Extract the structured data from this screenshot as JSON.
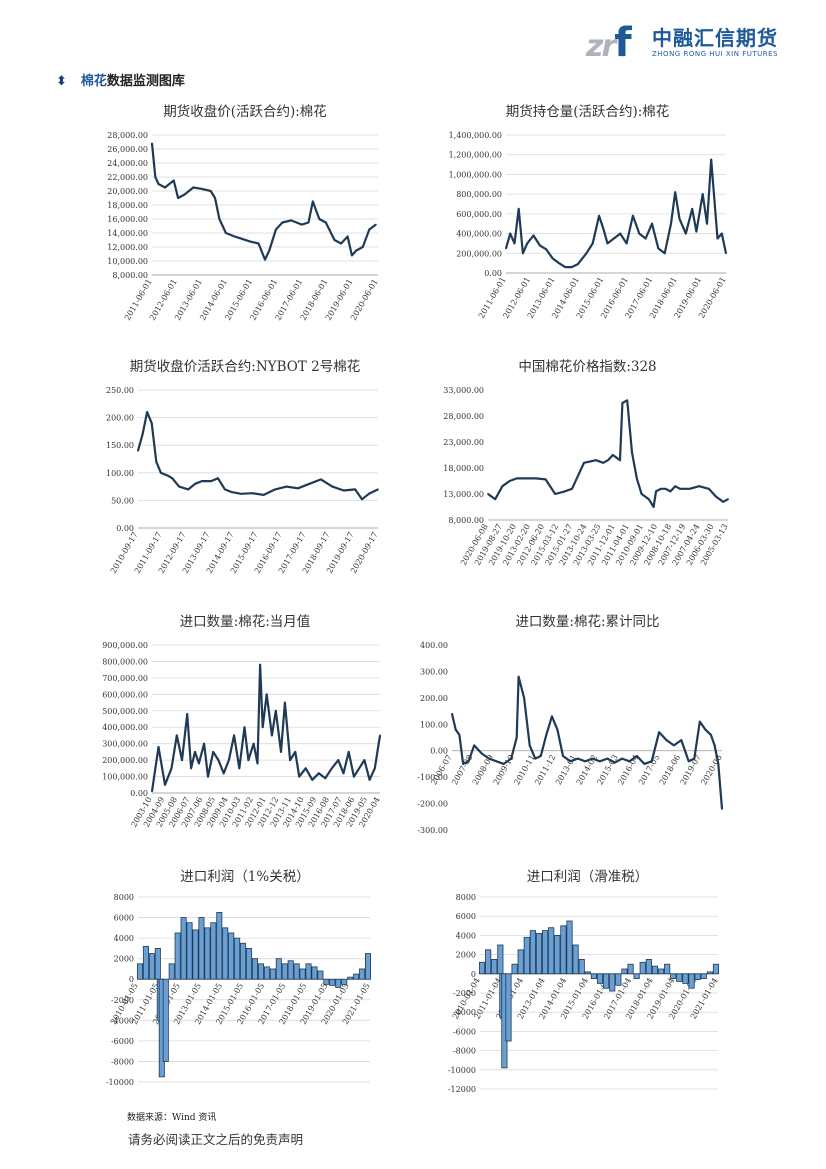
{
  "logo": {
    "mark": "zr",
    "mark_f": "f",
    "cn": "中融汇信期货",
    "en": "ZHONG RONG HUI XIN FUTURES"
  },
  "section": {
    "highlight": "棉花",
    "rest": "数据监测图库"
  },
  "footer": {
    "source": "数据来源：Wind 资讯",
    "disclaimer": "请务必阅读正文之后的免责声明"
  },
  "colors": {
    "line": "#1f3a56",
    "bar_light": "#6a9fd3",
    "bar_dark": "#1f3a56",
    "grid": "#d9d9d9"
  },
  "chart_data": [
    {
      "type": "line",
      "title": "期货收盘价(活跃合约):棉花",
      "yticks": [
        "28,000.00",
        "26,000.00",
        "24,000.00",
        "22,000.00",
        "20,000.00",
        "18,000.00",
        "16,000.00",
        "14,000.00",
        "12,000.00",
        "10,000.00",
        "8,000.00"
      ],
      "ylim": [
        8000,
        28000
      ],
      "xticks": [
        "2011-06-01",
        "2012-06-01",
        "2013-06-01",
        "2014-06-01",
        "2015-06-01",
        "2016-06-01",
        "2017-06-01",
        "2018-06-01",
        "2019-06-01",
        "2020-06-01"
      ],
      "xrange": [
        2010.9,
        2021.3
      ],
      "x": [
        2010.9,
        2011.05,
        2011.2,
        2011.5,
        2011.9,
        2012.1,
        2012.4,
        2012.8,
        2013.2,
        2013.6,
        2013.8,
        2014.0,
        2014.3,
        2014.7,
        2015.0,
        2015.4,
        2015.8,
        2016.1,
        2016.3,
        2016.6,
        2016.9,
        2017.3,
        2017.8,
        2018.1,
        2018.3,
        2018.6,
        2018.9,
        2019.3,
        2019.6,
        2019.9,
        2020.1,
        2020.3,
        2020.6,
        2020.9,
        2021.2
      ],
      "y": [
        26800,
        22000,
        21000,
        20500,
        21500,
        19000,
        19500,
        20500,
        20300,
        20000,
        19000,
        16000,
        14000,
        13500,
        13200,
        12800,
        12500,
        10200,
        11500,
        14500,
        15500,
        15800,
        15200,
        15500,
        18500,
        16000,
        15500,
        13000,
        12500,
        13500,
        10800,
        11500,
        12000,
        14500,
        15200
      ]
    },
    {
      "type": "line",
      "title": "期货持仓量(活跃合约):棉花",
      "yticks": [
        "1,400,000.00",
        "1,200,000.00",
        "1,000,000.00",
        "800,000.00",
        "600,000.00",
        "400,000.00",
        "200,000.00",
        "0.00"
      ],
      "ylim": [
        0,
        1400000
      ],
      "xticks": [
        "2011-06-01",
        "2012-06-01",
        "2013-06-01",
        "2014-06-01",
        "2015-06-01",
        "2016-06-01",
        "2017-06-01",
        "2018-06-01",
        "2019-06-01",
        "2020-06-01"
      ],
      "xrange": [
        2010.9,
        2021.3
      ],
      "x": [
        2010.9,
        2011.1,
        2011.3,
        2011.5,
        2011.7,
        2011.9,
        2012.2,
        2012.5,
        2012.8,
        2013.1,
        2013.4,
        2013.7,
        2014.0,
        2014.3,
        2014.7,
        2015.0,
        2015.3,
        2015.5,
        2015.7,
        2016.0,
        2016.3,
        2016.6,
        2016.9,
        2017.2,
        2017.5,
        2017.8,
        2018.1,
        2018.4,
        2018.7,
        2018.9,
        2019.1,
        2019.4,
        2019.7,
        2019.9,
        2020.2,
        2020.4,
        2020.6,
        2020.9,
        2021.1,
        2021.3
      ],
      "y": [
        250000,
        400000,
        300000,
        650000,
        200000,
        300000,
        380000,
        280000,
        240000,
        150000,
        100000,
        60000,
        60000,
        90000,
        200000,
        300000,
        580000,
        450000,
        300000,
        350000,
        400000,
        300000,
        580000,
        400000,
        350000,
        500000,
        250000,
        200000,
        500000,
        820000,
        550000,
        400000,
        650000,
        420000,
        800000,
        500000,
        1150000,
        350000,
        400000,
        200000
      ]
    },
    {
      "type": "line",
      "title": "期货收盘价活跃合约:NYBOT 2号棉花",
      "yticks": [
        "250.00",
        "200.00",
        "150.00",
        "100.00",
        "50.00",
        "0.00"
      ],
      "ylim": [
        0,
        250
      ],
      "xticks": [
        "2010-09-17",
        "2011-09-17",
        "2012-09-17",
        "2013-09-17",
        "2014-09-17",
        "2015-09-17",
        "2016-09-17",
        "2017-09-17",
        "2018-09-17",
        "2019-09-17",
        "2020-09-17"
      ],
      "xrange": [
        2010.5,
        2021.0
      ],
      "x": [
        2010.5,
        2010.7,
        2010.9,
        2011.1,
        2011.3,
        2011.5,
        2011.8,
        2012.0,
        2012.3,
        2012.7,
        2013.0,
        2013.3,
        2013.7,
        2014.0,
        2014.3,
        2014.6,
        2015.0,
        2015.5,
        2016.0,
        2016.5,
        2017.0,
        2017.5,
        2018.0,
        2018.5,
        2019.0,
        2019.5,
        2020.0,
        2020.3,
        2020.6,
        2021.0
      ],
      "y": [
        140,
        170,
        210,
        190,
        120,
        100,
        95,
        90,
        75,
        70,
        80,
        85,
        85,
        90,
        70,
        65,
        62,
        63,
        60,
        70,
        75,
        72,
        80,
        88,
        75,
        68,
        70,
        52,
        62,
        70
      ]
    },
    {
      "type": "line",
      "title": "中国棉花价格指数:328",
      "yticks": [
        "33,000.00",
        "28,000.00",
        "23,000.00",
        "18,000.00",
        "13,000.00",
        "8,000.00"
      ],
      "ylim": [
        8000,
        33000
      ],
      "xticks": [
        "2020-06-08",
        "2019-08-27",
        "2019-10-20",
        "2013-02-20",
        "2012-06-20",
        "2015-03-12",
        "2015-01-27",
        "2013-10-24",
        "2013-03-25",
        "2011-12-01",
        "2011-04-01",
        "2010-09-01",
        "2009-12-10",
        "2008-10-18",
        "2007-12-19",
        "2007-04-24",
        "2006-03-30",
        "2005-03-13"
      ],
      "xrange": [
        0,
        100
      ],
      "x": [
        0,
        3,
        6,
        9,
        12,
        16,
        20,
        24,
        28,
        32,
        35,
        40,
        45,
        48,
        50,
        52,
        55,
        56,
        58,
        60,
        62,
        64,
        67,
        69,
        70,
        72,
        74,
        76,
        78,
        80,
        84,
        88,
        92,
        95,
        98,
        100
      ],
      "y": [
        13000,
        12000,
        14500,
        15500,
        16000,
        16000,
        16000,
        15800,
        13000,
        13500,
        14000,
        19000,
        19500,
        19000,
        19500,
        20500,
        19500,
        30500,
        31000,
        21000,
        16000,
        13000,
        12000,
        10500,
        13500,
        14000,
        14000,
        13500,
        14500,
        14000,
        14000,
        14500,
        14000,
        12500,
        11500,
        12000
      ]
    },
    {
      "type": "line",
      "title": "进口数量:棉花:当月值",
      "yticks": [
        "900,000.00",
        "800,000.00",
        "700,000.00",
        "600,000.00",
        "500,000.00",
        "400,000.00",
        "300,000.00",
        "200,000.00",
        "100,000.00",
        "0.00"
      ],
      "ylim": [
        0,
        900000
      ],
      "xticks": [
        "2003-10",
        "2004-09",
        "2005-08",
        "2006-07",
        "2007-06",
        "2008-05",
        "2009-04",
        "2010-03",
        "2011-02",
        "2012-01",
        "2012-12",
        "2013-11",
        "2014-10",
        "2015-09",
        "2016-08",
        "2017-07",
        "2018-06",
        "2019-05",
        "2020-04"
      ],
      "xrange": [
        2003.7,
        2021.2
      ],
      "x": [
        2003.7,
        2004.2,
        2004.7,
        2005.2,
        2005.6,
        2006.0,
        2006.4,
        2006.7,
        2007.0,
        2007.3,
        2007.7,
        2008.0,
        2008.4,
        2008.8,
        2009.2,
        2009.6,
        2010.0,
        2010.4,
        2010.8,
        2011.1,
        2011.5,
        2011.8,
        2012.0,
        2012.2,
        2012.5,
        2012.9,
        2013.2,
        2013.6,
        2013.9,
        2014.3,
        2014.7,
        2015.0,
        2015.5,
        2016.0,
        2016.5,
        2017.0,
        2017.5,
        2018.0,
        2018.4,
        2018.8,
        2019.2,
        2019.6,
        2020.0,
        2020.4,
        2020.8,
        2021.2
      ],
      "y": [
        10000,
        280000,
        50000,
        150000,
        350000,
        200000,
        480000,
        150000,
        250000,
        180000,
        300000,
        100000,
        250000,
        200000,
        120000,
        200000,
        350000,
        150000,
        400000,
        200000,
        300000,
        180000,
        780000,
        400000,
        600000,
        350000,
        500000,
        250000,
        550000,
        200000,
        250000,
        100000,
        150000,
        80000,
        120000,
        90000,
        150000,
        200000,
        120000,
        250000,
        100000,
        150000,
        200000,
        80000,
        150000,
        350000
      ]
    },
    {
      "type": "line",
      "title": "进口数量:棉花:累计同比",
      "yticks": [
        "400.00",
        "300.00",
        "200.00",
        "100.00",
        "0.00",
        "-100.00",
        "-200.00",
        "-300.00"
      ],
      "ylim": [
        -300,
        400
      ],
      "xticks": [
        "2006-07",
        "2007-08",
        "2008-09",
        "2009-10",
        "2010-11",
        "2011-12",
        "2013-01",
        "2014-02",
        "2015-03",
        "2016-04",
        "2017-05",
        "2018-06",
        "2019-07",
        "2020-08"
      ],
      "xrange": [
        2006.4,
        2021.0
      ],
      "x": [
        2006.4,
        2006.6,
        2006.8,
        2007.0,
        2007.3,
        2007.6,
        2008.0,
        2008.4,
        2008.8,
        2009.2,
        2009.6,
        2009.9,
        2010.0,
        2010.3,
        2010.6,
        2010.9,
        2011.2,
        2011.5,
        2011.8,
        2012.1,
        2012.4,
        2012.8,
        2013.2,
        2013.6,
        2014.0,
        2014.4,
        2014.8,
        2015.2,
        2015.6,
        2016.0,
        2016.4,
        2016.8,
        2017.2,
        2017.6,
        2018.0,
        2018.4,
        2018.8,
        2019.2,
        2019.5,
        2019.8,
        2020.1,
        2020.4,
        2020.6,
        2020.8,
        2021.0
      ],
      "y": [
        140,
        80,
        60,
        -50,
        -40,
        20,
        -10,
        -30,
        -40,
        -50,
        -30,
        50,
        280,
        200,
        20,
        -30,
        -20,
        60,
        130,
        80,
        -20,
        -40,
        -30,
        -40,
        -30,
        -40,
        -30,
        -45,
        -30,
        -40,
        -20,
        -50,
        -40,
        70,
        40,
        20,
        40,
        -40,
        -30,
        110,
        80,
        60,
        20,
        -50,
        -220
      ]
    },
    {
      "type": "bar",
      "title": "进口利润（1%关税）",
      "yticks": [
        "8000",
        "6000",
        "4000",
        "2000",
        "0",
        "-2000",
        "-4000",
        "-6000",
        "-8000",
        "-10000"
      ],
      "ylim": [
        -10000,
        8000
      ],
      "xticks": [
        "2010-01-05",
        "2011-01-05",
        "2012-01-05",
        "2013-01-05",
        "2014-01-05",
        "2015-01-05",
        "2016-01-05",
        "2017-01-05",
        "2018-01-05",
        "2019-01-05",
        "2020-01-05",
        "2021-01-05"
      ],
      "xrange": [
        2009.9,
        2021.6
      ],
      "x": [
        2010.0,
        2010.3,
        2010.6,
        2010.9,
        2011.0,
        2011.1,
        2011.3,
        2011.6,
        2011.9,
        2012.2,
        2012.5,
        2012.8,
        2013.1,
        2013.4,
        2013.7,
        2014.0,
        2014.3,
        2014.6,
        2014.9,
        2015.2,
        2015.5,
        2015.8,
        2016.1,
        2016.4,
        2016.7,
        2017.0,
        2017.3,
        2017.6,
        2017.9,
        2018.2,
        2018.5,
        2018.8,
        2019.1,
        2019.4,
        2019.7,
        2020.0,
        2020.3,
        2020.6,
        2020.9,
        2021.2,
        2021.5
      ],
      "y": [
        1500,
        3200,
        2500,
        3000,
        -4000,
        -9500,
        -8000,
        1500,
        4500,
        6000,
        5500,
        4800,
        6000,
        5000,
        5500,
        6500,
        5000,
        4500,
        4000,
        3500,
        3000,
        2000,
        1500,
        1200,
        1000,
        2000,
        1500,
        1800,
        1500,
        1000,
        1500,
        1200,
        800,
        -500,
        -600,
        -800,
        -500,
        200,
        500,
        1000,
        2500
      ]
    },
    {
      "type": "bar",
      "title": "进口利润（滑准税）",
      "yticks": [
        "8000",
        "6000",
        "4000",
        "2000",
        "0",
        "-2000",
        "-4000",
        "-6000",
        "-8000",
        "-10000",
        "-12000"
      ],
      "ylim": [
        -12000,
        8000
      ],
      "xticks": [
        "2010-01-04",
        "2011-01-04",
        "2012-01-04",
        "2013-01-04",
        "2014-01-04",
        "2015-01-04",
        "2016-01-04",
        "2017-01-04",
        "2018-01-04",
        "2019-01-04",
        "2020-01-04",
        "2021-01-04"
      ],
      "xrange": [
        2009.9,
        2021.6
      ],
      "x": [
        2010.0,
        2010.3,
        2010.6,
        2010.9,
        2011.0,
        2011.1,
        2011.3,
        2011.6,
        2011.9,
        2012.2,
        2012.5,
        2012.8,
        2013.1,
        2013.4,
        2013.7,
        2014.0,
        2014.3,
        2014.6,
        2014.9,
        2015.2,
        2015.5,
        2015.8,
        2016.1,
        2016.4,
        2016.7,
        2017.0,
        2017.3,
        2017.6,
        2017.9,
        2018.2,
        2018.5,
        2018.8,
        2019.1,
        2019.4,
        2019.7,
        2020.0,
        2020.3,
        2020.6,
        2020.9,
        2021.2,
        2021.5
      ],
      "y": [
        1200,
        2500,
        1500,
        3000,
        -4500,
        -9800,
        -7000,
        1000,
        2500,
        3800,
        4500,
        4200,
        4500,
        4800,
        4000,
        5000,
        5500,
        3000,
        1500,
        200,
        -500,
        -1000,
        -1500,
        -1800,
        -1200,
        500,
        1000,
        -500,
        1200,
        1500,
        800,
        500,
        1000,
        -500,
        -800,
        -1000,
        -1500,
        -600,
        -500,
        200,
        1000
      ]
    }
  ]
}
